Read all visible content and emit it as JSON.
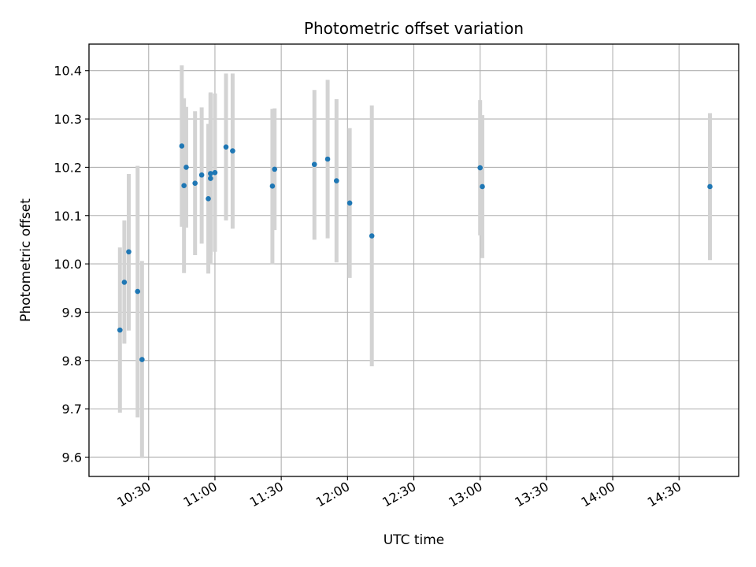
{
  "chart_data": {
    "type": "scatter",
    "title": "Photometric offset variation",
    "xlabel": "UTC time",
    "ylabel": "Photometric offset",
    "x_tick_labels": [
      "10:30",
      "11:00",
      "11:30",
      "12:00",
      "12:30",
      "13:00",
      "13:30",
      "14:00",
      "14:30"
    ],
    "x_ticks": [
      "10:30",
      "11:00",
      "11:30",
      "12:00",
      "12:30",
      "13:00",
      "13:30",
      "14:00",
      "14:30"
    ],
    "y_tick_labels": [
      "9.6",
      "9.7",
      "9.8",
      "9.9",
      "10.0",
      "10.1",
      "10.2",
      "10.3",
      "10.4"
    ],
    "y_ticks": [
      9.6,
      9.7,
      9.8,
      9.9,
      10.0,
      10.1,
      10.2,
      10.3,
      10.4
    ],
    "xlim": [
      "10:03",
      "14:57"
    ],
    "ylim": [
      9.56,
      10.455
    ],
    "grid": true,
    "marker_color": "#1f77b4",
    "errorbar_color": "#d3d3d3",
    "points": [
      {
        "t": "10:17",
        "y": 9.863,
        "lo": 9.692,
        "hi": 10.034
      },
      {
        "t": "10:19",
        "y": 9.962,
        "lo": 9.835,
        "hi": 10.09
      },
      {
        "t": "10:21",
        "y": 10.025,
        "lo": 9.862,
        "hi": 10.186
      },
      {
        "t": "10:25",
        "y": 9.943,
        "lo": 9.682,
        "hi": 10.203
      },
      {
        "t": "10:27",
        "y": 9.802,
        "lo": 9.598,
        "hi": 10.006
      },
      {
        "t": "10:45",
        "y": 10.244,
        "lo": 10.077,
        "hi": 10.411
      },
      {
        "t": "10:46",
        "y": 10.162,
        "lo": 9.981,
        "hi": 10.343
      },
      {
        "t": "10:47",
        "y": 10.2,
        "lo": 10.075,
        "hi": 10.325
      },
      {
        "t": "10:51",
        "y": 10.167,
        "lo": 10.018,
        "hi": 10.316
      },
      {
        "t": "10:54",
        "y": 10.184,
        "lo": 10.042,
        "hi": 10.324
      },
      {
        "t": "10:57",
        "y": 10.135,
        "lo": 9.98,
        "hi": 10.29
      },
      {
        "t": "10:58",
        "y": 10.177,
        "lo": 9.999,
        "hi": 10.355
      },
      {
        "t": "10:58",
        "y": 10.187,
        "lo": 10.018,
        "hi": 10.353
      },
      {
        "t": "11:00",
        "y": 10.189,
        "lo": 10.025,
        "hi": 10.353
      },
      {
        "t": "11:05",
        "y": 10.242,
        "lo": 10.09,
        "hi": 10.394
      },
      {
        "t": "11:08",
        "y": 10.234,
        "lo": 10.073,
        "hi": 10.394
      },
      {
        "t": "11:26",
        "y": 10.161,
        "lo": 9.999,
        "hi": 10.321
      },
      {
        "t": "11:27",
        "y": 10.196,
        "lo": 10.07,
        "hi": 10.322
      },
      {
        "t": "11:45",
        "y": 10.206,
        "lo": 10.05,
        "hi": 10.36
      },
      {
        "t": "11:51",
        "y": 10.217,
        "lo": 10.053,
        "hi": 10.381
      },
      {
        "t": "11:55",
        "y": 10.172,
        "lo": 10.003,
        "hi": 10.341
      },
      {
        "t": "12:01",
        "y": 10.126,
        "lo": 9.971,
        "hi": 10.281
      },
      {
        "t": "12:11",
        "y": 10.058,
        "lo": 9.788,
        "hi": 10.328
      },
      {
        "t": "13:00",
        "y": 10.199,
        "lo": 10.059,
        "hi": 10.339
      },
      {
        "t": "13:01",
        "y": 10.16,
        "lo": 10.012,
        "hi": 10.308
      },
      {
        "t": "14:44",
        "y": 10.16,
        "lo": 10.008,
        "hi": 10.312
      }
    ]
  }
}
